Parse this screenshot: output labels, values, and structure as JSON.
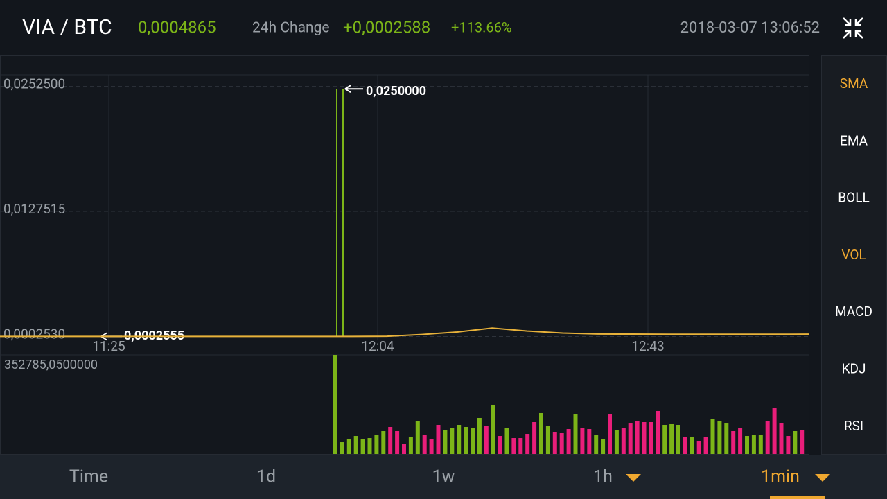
{
  "header": {
    "pair": "VIA / BTC",
    "price": "0,0004865",
    "change_label": "24h Change",
    "change": "+0,0002588",
    "change_pct": "+113.66%",
    "timestamp": "2018-03-07 13:06:52"
  },
  "price_chart": {
    "ylim": [
      -0.0002,
      0.0264
    ],
    "yticks": [
      {
        "value": 0.02525,
        "label": "0,0252500"
      },
      {
        "value": 0.0127515,
        "label": "0,0127515"
      },
      {
        "value": 0.000253,
        "label": "0,0002530"
      }
    ],
    "time_labels": [
      "11:25",
      "12:04",
      "12:43"
    ],
    "high": {
      "value": 0.025,
      "label": "0,0250000"
    },
    "low": {
      "value": 0.0002555,
      "label": "0,0002555"
    },
    "close": [
      0.000255,
      0.000255,
      0.000255,
      0.000255,
      0.000255,
      0.000255,
      0.000255,
      0.000255,
      0.000255,
      0.000255,
      0.000255,
      0.00028,
      0.00045,
      0.0007,
      0.0011,
      0.0008,
      0.0006,
      0.0005,
      0.00049,
      0.00048,
      0.00048,
      0.00047,
      0.00047,
      0.000487
    ],
    "color": "#e8b23a"
  },
  "volume_chart": {
    "max": {
      "value": 352785.05,
      "label": "352785,0500000"
    },
    "up_color": "#7cb518",
    "down_color": "#e91e7a",
    "values": [
      352785.05,
      41900,
      54300,
      64100,
      51800,
      56700,
      69100,
      81400,
      96200,
      81400,
      37000,
      61700,
      116000,
      69100,
      54300,
      103600,
      83900,
      91300,
      103600,
      96200,
      91300,
      128300,
      98700,
      175200,
      64100,
      91300,
      56700,
      56700,
      71500,
      113500,
      145600,
      101100,
      78900,
      74000,
      88800,
      140600,
      91300,
      88800,
      66600,
      51800,
      140600,
      83900,
      91300,
      108500,
      116000,
      113500,
      113500,
      153000,
      103600,
      106100,
      103600,
      61700,
      61700,
      46900,
      61700,
      123400,
      118400,
      108500,
      81400,
      91300,
      64100,
      66600,
      69100,
      118400,
      162800,
      111000,
      64100,
      81400,
      83900
    ],
    "up": [
      true,
      true,
      true,
      true,
      true,
      true,
      true,
      true,
      false,
      false,
      false,
      true,
      true,
      false,
      false,
      false,
      true,
      true,
      true,
      true,
      true,
      true,
      false,
      true,
      false,
      true,
      false,
      false,
      false,
      false,
      true,
      true,
      false,
      false,
      false,
      true,
      false,
      false,
      true,
      true,
      false,
      true,
      false,
      false,
      false,
      false,
      false,
      false,
      true,
      true,
      true,
      false,
      true,
      false,
      false,
      true,
      true,
      true,
      false,
      false,
      true,
      true,
      true,
      false,
      false,
      false,
      false,
      true,
      false
    ]
  },
  "indicators": [
    {
      "label": "SMA",
      "active": true
    },
    {
      "label": "EMA",
      "active": false
    },
    {
      "label": "BOLL",
      "active": false
    },
    {
      "label": "VOL",
      "active": true
    },
    {
      "label": "MACD",
      "active": false
    },
    {
      "label": "KDJ",
      "active": false
    },
    {
      "label": "RSI",
      "active": false
    }
  ],
  "tabs": [
    {
      "label": "Time",
      "dropdown": false
    },
    {
      "label": "1d",
      "dropdown": false
    },
    {
      "label": "1w",
      "dropdown": false
    },
    {
      "label": "1h",
      "dropdown": true
    },
    {
      "label": "1min",
      "dropdown": true
    }
  ],
  "selected_tab": 4
}
